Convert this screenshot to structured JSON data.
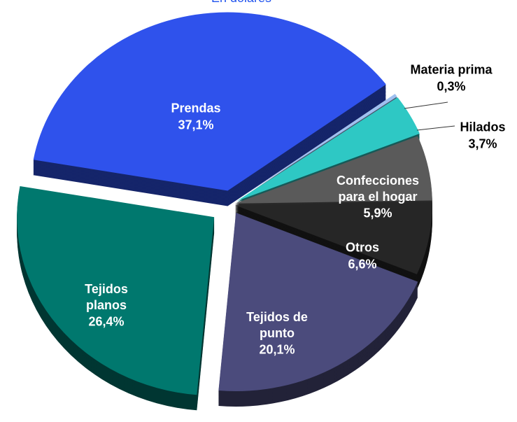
{
  "chart_data": {
    "type": "pie",
    "subtitle": "En dólares",
    "categories": [
      "Prendas",
      "Materia prima",
      "Hilados",
      "Confecciones para el hogar",
      "Otros",
      "Tejidos de punto",
      "Tejidos planos"
    ],
    "values": [
      37.1,
      0.3,
      3.7,
      5.9,
      6.6,
      20.1,
      26.4
    ],
    "value_labels": [
      "37,1%",
      "0,3%",
      "3,7%",
      "5,9%",
      "6,6%",
      "20,1%",
      "26,4%"
    ],
    "colors": [
      "#2f52ec",
      "#9fc0f0",
      "#2ec8c4",
      "#5a5a5a",
      "#262626",
      "#4b4b7c",
      "#00786e"
    ]
  }
}
